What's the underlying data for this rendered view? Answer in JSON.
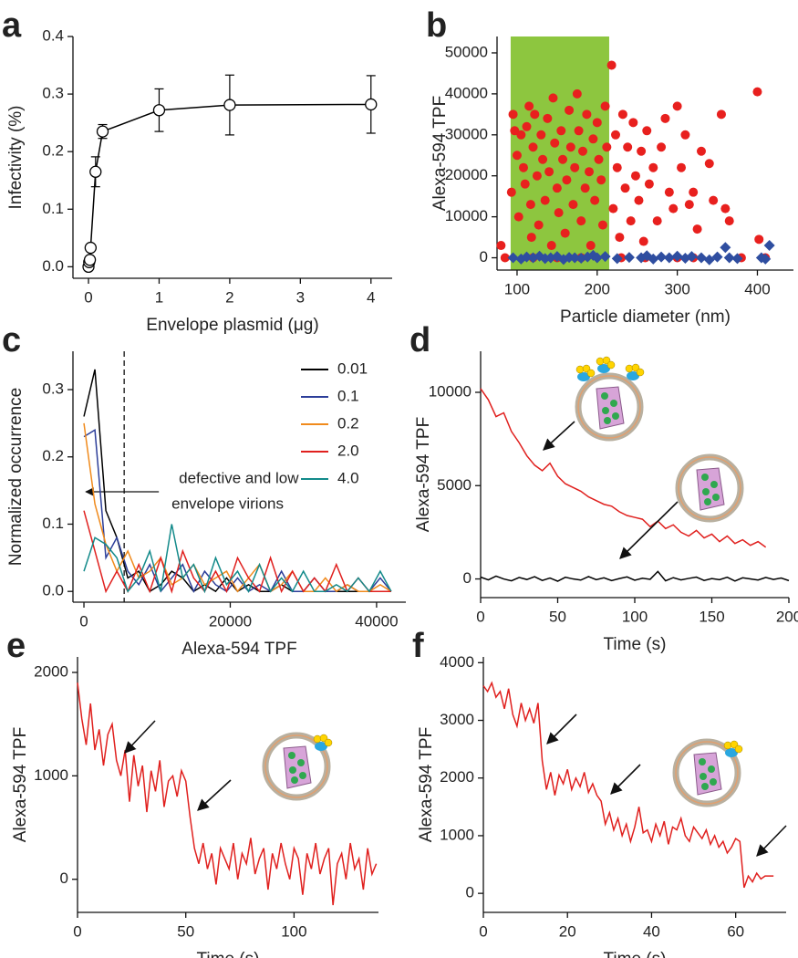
{
  "chart_data": [
    {
      "type": "line",
      "label": "a",
      "xlabel": "Envelope plasmid (μg)",
      "ylabel": "Infectivity (%)",
      "x": [
        0,
        0.01,
        0.02,
        0.03,
        0.1,
        0.2,
        1,
        2,
        4
      ],
      "series": [
        {
          "color": "#000000",
          "marker": "open-circle",
          "values": [
            0,
            0.008,
            0.012,
            0.033,
            0.165,
            0.235,
            0.272,
            0.281,
            0.282
          ],
          "errors": [
            0.003,
            0.004,
            0.004,
            0.004,
            0.026,
            0.012,
            0.037,
            0.052,
            0.05
          ]
        }
      ],
      "xlim": [
        -0.22,
        4.3
      ],
      "ylim": [
        -0.02,
        0.4
      ],
      "xticks": [
        0,
        1,
        2,
        3,
        4
      ],
      "yticks": [
        {
          "value": 0,
          "label": "0.0"
        },
        0.1,
        0.2,
        0.3,
        0.4
      ]
    },
    {
      "type": "scatter",
      "label": "b",
      "xlabel": "Particle diameter (nm)",
      "ylabel": "Alexa-594 TPF",
      "shade": {
        "x": [
          92,
          215
        ],
        "color": "#8dc63f"
      },
      "series": [
        {
          "color": "#e8201e",
          "marker": "circle",
          "x": [
            80,
            85,
            95,
            93,
            97,
            100,
            102,
            105,
            108,
            110,
            112,
            115,
            117,
            118,
            120,
            122,
            125,
            127,
            130,
            132,
            135,
            138,
            140,
            143,
            145,
            147,
            150,
            152,
            155,
            157,
            160,
            162,
            165,
            167,
            170,
            172,
            175,
            177,
            180,
            182,
            185,
            187,
            190,
            192,
            195,
            197,
            200,
            202,
            205,
            207,
            210,
            212,
            218,
            220,
            223,
            225,
            228,
            232,
            235,
            238,
            242,
            245,
            248,
            252,
            255,
            258,
            262,
            265,
            270,
            275,
            280,
            285,
            290,
            295,
            300,
            305,
            310,
            315,
            320,
            325,
            330,
            340,
            345,
            355,
            360,
            365,
            380,
            400,
            402,
            410,
            120,
            150,
            180,
            230,
            260,
            300,
            320
          ],
          "values": [
            3000,
            0,
            35000,
            16000,
            31000,
            25000,
            10000,
            30000,
            22000,
            18000,
            32000,
            37000,
            13000,
            5000,
            27000,
            35000,
            20000,
            8000,
            30000,
            24000,
            14000,
            34000,
            21000,
            3000,
            39000,
            28000,
            17000,
            11000,
            31000,
            24000,
            6000,
            19000,
            36000,
            27000,
            13000,
            22000,
            40000,
            31000,
            9000,
            26000,
            17000,
            35000,
            21000,
            3000,
            29000,
            14000,
            33000,
            24000,
            19000,
            8000,
            37000,
            27000,
            47000,
            12000,
            30000,
            22000,
            5000,
            35000,
            17000,
            27000,
            9000,
            33000,
            20000,
            14000,
            26000,
            4000,
            31000,
            18000,
            22000,
            9000,
            27000,
            34000,
            16000,
            12000,
            37000,
            22000,
            30000,
            13000,
            16000,
            7000,
            26000,
            23000,
            14000,
            35000,
            12000,
            9000,
            0,
            40500,
            4500,
            0,
            0,
            0,
            0,
            0,
            0,
            0,
            0
          ]
        },
        {
          "color": "#2f4ea0",
          "marker": "diamond",
          "x": [
            95,
            105,
            112,
            120,
            128,
            135,
            142,
            150,
            158,
            165,
            172,
            180,
            188,
            195,
            200,
            210,
            225,
            240,
            255,
            262,
            270,
            280,
            290,
            300,
            310,
            318,
            330,
            340,
            350,
            360,
            365,
            375,
            405,
            410,
            415
          ],
          "values": [
            0,
            -300,
            200,
            0,
            400,
            -200,
            0,
            300,
            -400,
            100,
            0,
            -100,
            200,
            600,
            0,
            300,
            -200,
            100,
            0,
            500,
            -300,
            200,
            0,
            400,
            -100,
            300,
            0,
            -500,
            200,
            2500,
            0,
            -200,
            0,
            -300,
            3000
          ]
        }
      ],
      "xlim": [
        75,
        445
      ],
      "ylim": [
        -3000,
        54000
      ],
      "xticks": [
        100,
        200,
        300,
        400
      ],
      "yticks": [
        0,
        10000,
        20000,
        30000,
        40000,
        50000
      ]
    },
    {
      "type": "line",
      "label": "c",
      "xlabel": "Alexa-594 TPF",
      "ylabel": "Normalized occurrence",
      "x": [
        0,
        1500,
        3000,
        4500,
        6000,
        7500,
        9000,
        10500,
        12000,
        13500,
        15000,
        16500,
        18000,
        19500,
        21000,
        22500,
        24000,
        25500,
        27000,
        28500,
        30000,
        31500,
        33000,
        34500,
        36000,
        37500,
        39000,
        40500,
        42000
      ],
      "series": [
        {
          "name": "0.01",
          "color": "#000000",
          "values": [
            0.26,
            0.33,
            0.12,
            0.08,
            0.02,
            0.03,
            0,
            0.01,
            0.03,
            0.02,
            0,
            0.01,
            0,
            0.02,
            0,
            0.01,
            0,
            0,
            0.01,
            0,
            0,
            0,
            0,
            0,
            0,
            0,
            0,
            0,
            0
          ]
        },
        {
          "name": "0.1",
          "color": "#2c3e99",
          "values": [
            0.23,
            0.24,
            0.05,
            0.08,
            0.03,
            0.01,
            0.04,
            0,
            0.02,
            0.04,
            0,
            0.03,
            0.01,
            0,
            0.02,
            0,
            0.01,
            0,
            0.03,
            0,
            0,
            0.02,
            0,
            0,
            0.01,
            0,
            0,
            0.02,
            0
          ]
        },
        {
          "name": "0.2",
          "color": "#f08a1c",
          "values": [
            0.25,
            0.13,
            0.07,
            0.03,
            0.06,
            0.02,
            0.03,
            0.05,
            0.01,
            0.02,
            0.04,
            0.01,
            0.02,
            0.03,
            0,
            0.02,
            0.04,
            0,
            0.01,
            0.03,
            0,
            0,
            0.02,
            0,
            0.01,
            0,
            0,
            0.01,
            0
          ]
        },
        {
          "name": "2.0",
          "color": "#e0201e",
          "values": [
            0.12,
            0.06,
            0,
            0.03,
            0,
            0.04,
            0,
            0.05,
            0,
            0.06,
            0.02,
            0,
            0.03,
            0,
            0.05,
            0.02,
            0,
            0.05,
            0,
            0.03,
            0,
            0.02,
            0,
            0.04,
            0,
            0.02,
            0,
            0,
            0
          ]
        },
        {
          "name": "4.0",
          "color": "#138a8a",
          "values": [
            0.03,
            0.08,
            0.07,
            0.05,
            0,
            0.02,
            0.06,
            0,
            0.1,
            0.02,
            0.04,
            0,
            0.05,
            0.01,
            0.03,
            0,
            0.04,
            0,
            0.02,
            0,
            0.03,
            0,
            0,
            0.01,
            0,
            0.02,
            0,
            0.03,
            0
          ]
        }
      ],
      "vline": 5500,
      "annotation": [
        "defective and low",
        "envelope virions"
      ],
      "legend": "upper right",
      "xlim": [
        -1500,
        44000
      ],
      "ylim": [
        -0.016,
        0.357
      ],
      "xticks": [
        0,
        20000,
        40000
      ],
      "yticks": [
        {
          "value": 0,
          "label": "0.0"
        },
        0.1,
        0.2,
        0.3
      ]
    },
    {
      "type": "line",
      "label": "d",
      "xlabel": "Time (s)",
      "ylabel": "Alexa-594 TPF",
      "series": [
        {
          "color": "#e0201e",
          "x": [
            0,
            5,
            10,
            15,
            20,
            25,
            30,
            35,
            40,
            45,
            50,
            55,
            60,
            65,
            70,
            75,
            80,
            85,
            90,
            95,
            100,
            105,
            110,
            115,
            120,
            125,
            130,
            135,
            140,
            145,
            150,
            155,
            160,
            165,
            170,
            175,
            180,
            185
          ],
          "values": [
            10200,
            9600,
            8700,
            8900,
            7900,
            7300,
            6600,
            6100,
            5800,
            6200,
            5500,
            5100,
            4900,
            4700,
            4400,
            4200,
            4000,
            3900,
            3600,
            3400,
            3300,
            3200,
            2800,
            3100,
            2700,
            2900,
            2500,
            2300,
            2600,
            2200,
            2400,
            2000,
            2300,
            1900,
            2100,
            1800,
            2000,
            1700
          ]
        },
        {
          "color": "#000000",
          "x": [
            0,
            5,
            10,
            15,
            20,
            25,
            30,
            35,
            40,
            45,
            50,
            55,
            60,
            65,
            70,
            75,
            80,
            85,
            90,
            95,
            100,
            105,
            110,
            115,
            120,
            125,
            130,
            135,
            140,
            145,
            150,
            155,
            160,
            165,
            170,
            175,
            180,
            185,
            190,
            195,
            200
          ],
          "values": [
            100,
            -50,
            150,
            0,
            -100,
            80,
            -30,
            120,
            -80,
            50,
            -120,
            90,
            0,
            -60,
            130,
            -40,
            60,
            -90,
            20,
            110,
            -70,
            40,
            -20,
            400,
            -100,
            70,
            -50,
            30,
            100,
            -80,
            20,
            -40,
            90,
            -110,
            60,
            0,
            -60,
            80,
            -30,
            50,
            -90
          ]
        }
      ],
      "xlim": [
        0,
        200
      ],
      "ylim": [
        -1000,
        12200
      ],
      "xticks": [
        0,
        50,
        100,
        150,
        200
      ],
      "yticks": [
        0,
        5000,
        10000
      ]
    },
    {
      "type": "line",
      "label": "e",
      "xlabel": "Time (s)",
      "ylabel": "Alexa-594 TPF",
      "series": [
        {
          "color": "#e0201e",
          "x": [
            0,
            2,
            4,
            6,
            8,
            10,
            12,
            14,
            16,
            18,
            20,
            22,
            24,
            26,
            28,
            30,
            32,
            34,
            36,
            38,
            40,
            42,
            44,
            46,
            48,
            50,
            52,
            54,
            56,
            58,
            60,
            62,
            64,
            66,
            68,
            70,
            72,
            74,
            76,
            78,
            80,
            82,
            84,
            86,
            88,
            90,
            92,
            94,
            96,
            98,
            100,
            102,
            104,
            106,
            108,
            110,
            112,
            114,
            116,
            118,
            120,
            122,
            124,
            126,
            128,
            130,
            132,
            134,
            136,
            138
          ],
          "values": [
            1900,
            1550,
            1300,
            1700,
            1250,
            1450,
            1100,
            1400,
            1500,
            1150,
            1000,
            1250,
            750,
            1200,
            900,
            1100,
            650,
            1050,
            850,
            1150,
            700,
            950,
            1000,
            800,
            1050,
            950,
            600,
            300,
            150,
            350,
            100,
            250,
            -50,
            300,
            200,
            100,
            350,
            0,
            250,
            150,
            400,
            50,
            200,
            300,
            -100,
            250,
            100,
            350,
            150,
            0,
            300,
            200,
            -150,
            250,
            100,
            350,
            50,
            200,
            300,
            -250,
            150,
            250,
            0,
            350,
            100,
            200,
            -100,
            300,
            50,
            150
          ]
        }
      ],
      "xlim": [
        0,
        139
      ],
      "ylim": [
        -320,
        2150
      ],
      "xticks": [
        0,
        50,
        100
      ],
      "yticks": [
        0,
        1000,
        2000
      ]
    },
    {
      "type": "line",
      "label": "f",
      "xlabel": "Time (s)",
      "ylabel": "Alexa-594 TPF",
      "series": [
        {
          "color": "#e0201e",
          "x": [
            0,
            1,
            2,
            3,
            4,
            5,
            6,
            7,
            8,
            9,
            10,
            11,
            12,
            13,
            14,
            15,
            16,
            17,
            18,
            19,
            20,
            21,
            22,
            23,
            24,
            25,
            26,
            27,
            28,
            29,
            30,
            31,
            32,
            33,
            34,
            35,
            36,
            37,
            38,
            39,
            40,
            41,
            42,
            43,
            44,
            45,
            46,
            47,
            48,
            49,
            50,
            51,
            52,
            53,
            54,
            55,
            56,
            57,
            58,
            59,
            60,
            61,
            62,
            63,
            64,
            65,
            66,
            67,
            68,
            69
          ],
          "values": [
            3600,
            3500,
            3650,
            3400,
            3500,
            3200,
            3550,
            3100,
            2900,
            3300,
            3000,
            3200,
            2950,
            3300,
            2300,
            1800,
            2100,
            1700,
            2050,
            1900,
            2150,
            1800,
            2000,
            1850,
            2100,
            1750,
            1900,
            1700,
            1600,
            1200,
            1400,
            1100,
            1300,
            1000,
            1200,
            900,
            1150,
            1500,
            1050,
            1100,
            900,
            1200,
            1000,
            1250,
            850,
            1150,
            1100,
            1300,
            1000,
            900,
            1150,
            1050,
            950,
            1100,
            850,
            1000,
            800,
            900,
            700,
            800,
            950,
            900,
            100,
            300,
            200,
            350,
            250,
            300,
            300,
            300
          ]
        }
      ],
      "xlim": [
        0,
        72
      ],
      "ylim": [
        -330,
        4100
      ],
      "xticks": [
        0,
        20,
        40,
        60
      ],
      "yticks": [
        0,
        1000,
        2000,
        3000,
        4000
      ]
    }
  ]
}
